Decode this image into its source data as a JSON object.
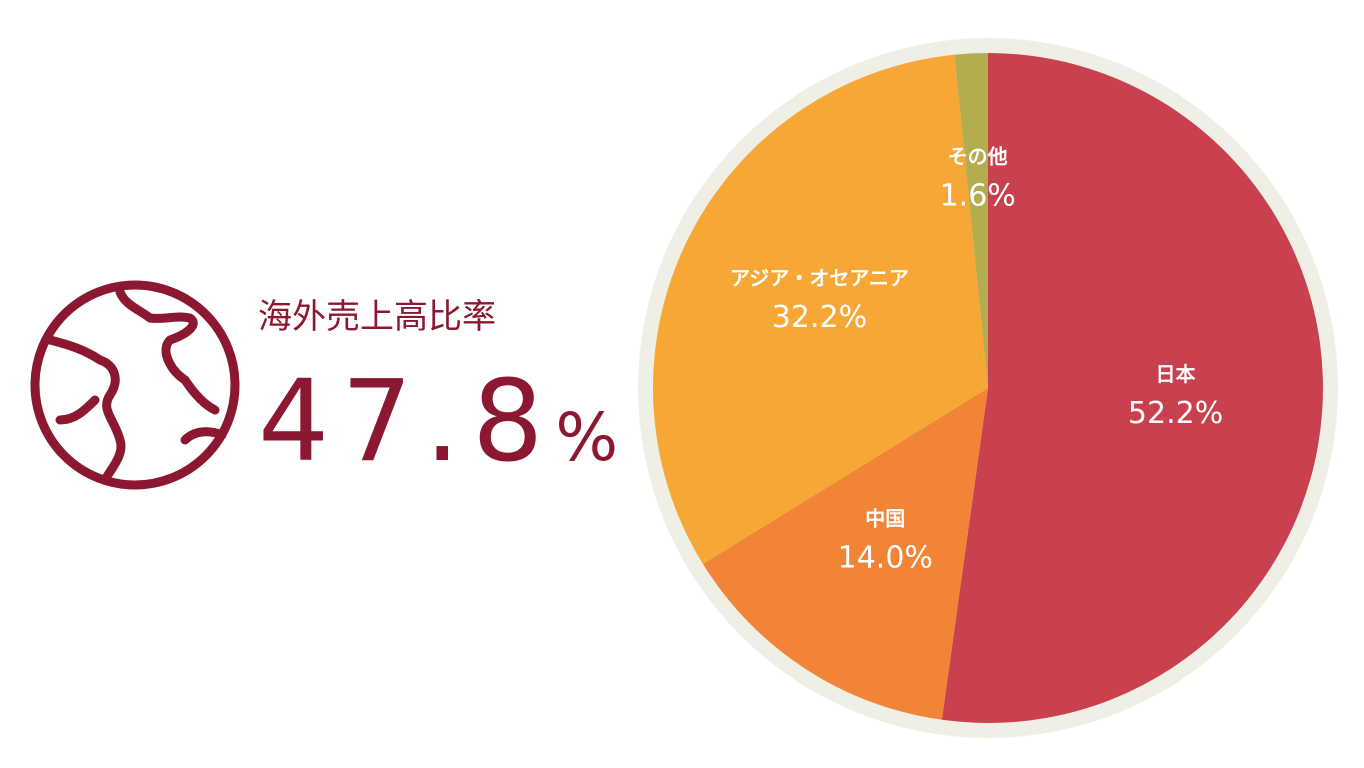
{
  "headline": {
    "label": "海外売上高比率",
    "value": "47.8",
    "unit": "%"
  },
  "chart_data": {
    "type": "pie",
    "categories": [
      "日本",
      "中国",
      "アジア・オセアニア",
      "その他"
    ],
    "values": [
      52.2,
      14.0,
      32.2,
      1.6
    ],
    "value_labels": [
      "52.2%",
      "14.0%",
      "32.2%",
      "1.6%"
    ],
    "colors": [
      "#c9414e",
      "#f18436",
      "#f6a735",
      "#b3ad4f"
    ]
  }
}
